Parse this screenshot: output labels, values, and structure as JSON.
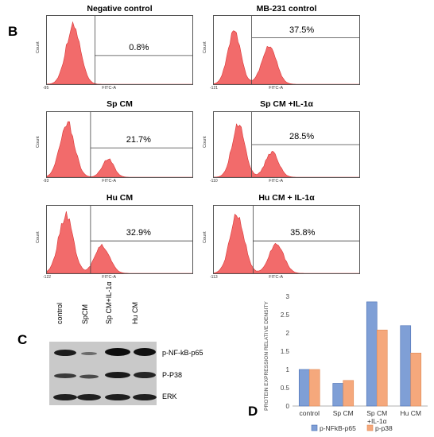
{
  "panels": {
    "B": "B",
    "C": "C",
    "D": "D"
  },
  "flow": [
    {
      "title": "Negative control",
      "percent": "0.8%",
      "ylabel": "Count",
      "xlabel": "FITC-A",
      "xmin": "-95",
      "peaks": [
        {
          "pos": 0.18,
          "height": 0.92,
          "width": 0.05
        }
      ]
    },
    {
      "title": "MB-231 control",
      "percent": "37.5%",
      "ylabel": "Count",
      "xlabel": "FITC-A",
      "xmin": "-121",
      "peaks": [
        {
          "pos": 0.14,
          "height": 0.82,
          "width": 0.045
        },
        {
          "pos": 0.38,
          "height": 0.6,
          "width": 0.05
        }
      ]
    },
    {
      "title": "Sp CM",
      "percent": "21.7%",
      "ylabel": "Count",
      "xlabel": "FITC-A",
      "xmin": "-93",
      "peaks": [
        {
          "pos": 0.14,
          "height": 0.9,
          "width": 0.05
        },
        {
          "pos": 0.42,
          "height": 0.3,
          "width": 0.04
        }
      ]
    },
    {
      "title": "Sp CM +IL-1α",
      "percent": "28.5%",
      "ylabel": "Count",
      "xlabel": "FITC-A",
      "xmin": "-110",
      "peaks": [
        {
          "pos": 0.17,
          "height": 0.88,
          "width": 0.045
        },
        {
          "pos": 0.4,
          "height": 0.42,
          "width": 0.045
        }
      ]
    },
    {
      "title": "Hu CM",
      "percent": "32.9%",
      "ylabel": "Count",
      "xlabel": "FITC-A",
      "xmin": "-122",
      "peaks": [
        {
          "pos": 0.13,
          "height": 0.92,
          "width": 0.05
        },
        {
          "pos": 0.38,
          "height": 0.45,
          "width": 0.05
        }
      ]
    },
    {
      "title": "Hu CM + IL-1α",
      "percent": "35.8%",
      "ylabel": "Count",
      "xlabel": "FITC-A",
      "xmin": "-113",
      "peaks": [
        {
          "pos": 0.16,
          "height": 0.92,
          "width": 0.05
        },
        {
          "pos": 0.43,
          "height": 0.48,
          "width": 0.05
        }
      ]
    }
  ],
  "blot": {
    "lanes": [
      "control",
      "SpCM",
      "Sp CM+IL-1α",
      "Hu CM"
    ],
    "rows": [
      "p-NF-kB-p65",
      "P-P38",
      "ERK"
    ]
  },
  "chart_data": {
    "type": "bar",
    "categories": [
      "control",
      "Sp CM",
      "Sp CM +IL-1α",
      "Hu CM"
    ],
    "series": [
      {
        "name": "p-NFkB-p65",
        "values": [
          1.0,
          0.62,
          2.85,
          2.2
        ],
        "color": "#7f9fd6"
      },
      {
        "name": "p-p38",
        "values": [
          1.0,
          0.7,
          2.08,
          1.45
        ],
        "color": "#f5a87c"
      }
    ],
    "ylabel": "PROTEIN EXPRESSION RELATIVE DENSITY",
    "yticks": [
      "0",
      "0.5",
      "1",
      "1.5",
      "2",
      "2.5",
      "3"
    ],
    "ylim": [
      0,
      3
    ],
    "legend_position": "bottom"
  }
}
